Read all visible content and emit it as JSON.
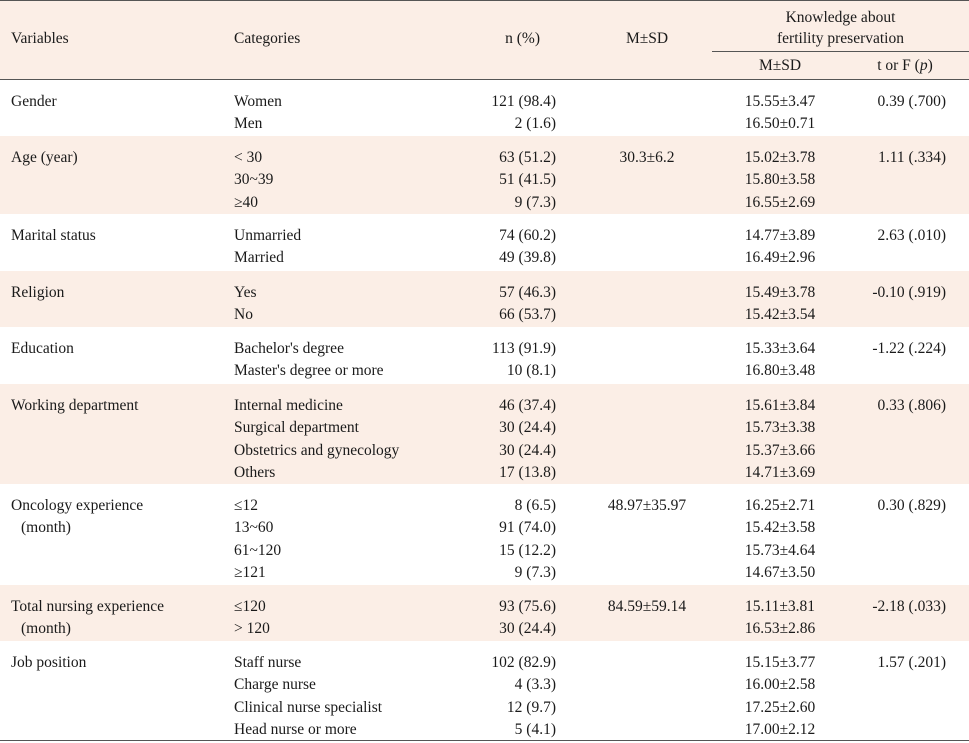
{
  "header": {
    "variables": "Variables",
    "categories": "Categories",
    "n_pct": "n (%)",
    "m_sd": "M±SD",
    "knowledge_line1": "Knowledge about",
    "knowledge_line2": "fertility preservation",
    "k_msd": "M±SD",
    "t_or_f": "t or F (",
    "p": "p",
    "close": ")"
  },
  "rows": [
    {
      "var": [
        "Gender"
      ],
      "cats": [
        "Women",
        "Men"
      ],
      "n": [
        "121 (98.4)",
        "2 (1.6)"
      ],
      "msd": "",
      "kmsd": [
        "15.55±3.47",
        "16.50±0.71"
      ],
      "t": "0.39 (.700)"
    },
    {
      "var": [
        "Age (year)"
      ],
      "cats": [
        "< 30",
        "30~39",
        "≥40"
      ],
      "n": [
        "63 (51.2)",
        "51 (41.5)",
        "9 (7.3)"
      ],
      "msd": "30.3±6.2",
      "kmsd": [
        "15.02±3.78",
        "15.80±3.58",
        "16.55±2.69"
      ],
      "t": "1.11 (.334)"
    },
    {
      "var": [
        "Marital status"
      ],
      "cats": [
        "Unmarried",
        "Married"
      ],
      "n": [
        "74 (60.2)",
        "49 (39.8)"
      ],
      "msd": "",
      "kmsd": [
        "14.77±3.89",
        "16.49±2.96"
      ],
      "t": "2.63 (.010)"
    },
    {
      "var": [
        "Religion"
      ],
      "cats": [
        "Yes",
        "No"
      ],
      "n": [
        "57 (46.3)",
        "66 (53.7)"
      ],
      "msd": "",
      "kmsd": [
        "15.49±3.78",
        "15.42±3.54"
      ],
      "t": "-0.10 (.919)"
    },
    {
      "var": [
        "Education"
      ],
      "cats": [
        "Bachelor's degree",
        "Master's degree or more"
      ],
      "n": [
        "113 (91.9)",
        "10 (8.1)"
      ],
      "msd": "",
      "kmsd": [
        "15.33±3.64",
        "16.80±3.48"
      ],
      "t": "-1.22 (.224)"
    },
    {
      "var": [
        "Working department"
      ],
      "cats": [
        "Internal medicine",
        "Surgical department",
        "Obstetrics and gynecology",
        "Others"
      ],
      "n": [
        "46 (37.4)",
        "30 (24.4)",
        "30 (24.4)",
        "17 (13.8)"
      ],
      "msd": "",
      "kmsd": [
        "15.61±3.84",
        "15.73±3.38",
        "15.37±3.66",
        "14.71±3.69"
      ],
      "t": "0.33 (.806)"
    },
    {
      "var": [
        "Oncology experience",
        "(month)"
      ],
      "cats": [
        "≤12",
        "13~60",
        "61~120",
        "≥121"
      ],
      "n": [
        "8 (6.5)",
        "91 (74.0)",
        "15 (12.2)",
        "9 (7.3)"
      ],
      "msd": "48.97±35.97",
      "kmsd": [
        "16.25±2.71",
        "15.42±3.58",
        "15.73±4.64",
        "14.67±3.50"
      ],
      "t": "0.30 (.829)"
    },
    {
      "var": [
        "Total nursing experience",
        "(month)"
      ],
      "cats": [
        "≤120",
        "> 120"
      ],
      "n": [
        "93 (75.6)",
        "30 (24.4)"
      ],
      "msd": "84.59±59.14",
      "kmsd": [
        "15.11±3.81",
        "16.53±2.86"
      ],
      "t": "-2.18 (.033)"
    },
    {
      "var": [
        "Job position"
      ],
      "cats": [
        "Staff nurse",
        "Charge nurse",
        "Clinical nurse specialist",
        "Head nurse or more"
      ],
      "n": [
        "102 (82.9)",
        "4 (3.3)",
        "12 (9.7)",
        "5 (4.1)"
      ],
      "msd": "",
      "kmsd": [
        "15.15±3.77",
        "16.00±2.58",
        "17.25±2.60",
        "17.00±2.12"
      ],
      "t": "1.57 (.201)"
    }
  ]
}
